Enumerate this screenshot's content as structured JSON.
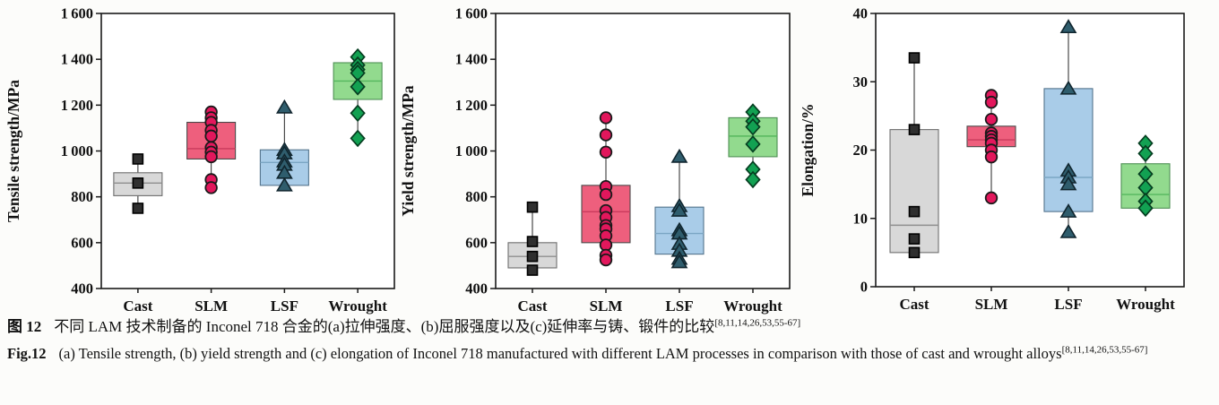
{
  "figure": {
    "caption_zh_label": "图 12",
    "caption_zh": "不同 LAM 技术制备的 Inconel 718 合金的(a)拉伸强度、(b)屈服强度以及(c)延伸率与铸、锻件的比较",
    "caption_en_label": "Fig.12",
    "caption_en": "(a) Tensile strength, (b) yield strength and (c) elongation of Inconel 718 manufactured with different LAM processes in comparison with those of cast and wrought alloys",
    "reference": "[8,11,14,26,53,55-67]"
  },
  "colors": {
    "page_bg": "#fcfcfa",
    "plot_bg": "#ffffff",
    "axis": "#1a1a1a",
    "whisker": "#3a3a3a",
    "boxes": {
      "Cast": {
        "fill": "#d8d8d8",
        "stroke": "#6e6e6e",
        "median": "#8f8f8f"
      },
      "SLM": {
        "fill": "#ee5f7d",
        "stroke": "#4a4a4a",
        "median": "#c93a5d"
      },
      "LSF": {
        "fill": "#a9cce8",
        "stroke": "#54748c",
        "median": "#7ba6c4"
      },
      "Wrought": {
        "fill": "#92da8e",
        "stroke": "#4e8f54",
        "median": "#56b75e"
      }
    },
    "markers": {
      "square": {
        "fill": "#2f2f2f",
        "stroke": "#000000"
      },
      "circle": {
        "fill": "#e2175c",
        "stroke": "#1a1a1a"
      },
      "triangle": {
        "fill": "#2f5d6d",
        "stroke": "#10252e"
      },
      "diamond": {
        "fill": "#12a152",
        "stroke": "#053d20"
      }
    }
  },
  "chart_data": [
    {
      "id": "a",
      "type": "scatter",
      "subtype": "box-scatter",
      "title": "",
      "xlabel": "",
      "ylabel": "Tensile strength/MPa",
      "ylim": [
        400,
        1600
      ],
      "yticks": [
        400,
        600,
        800,
        1000,
        1200,
        1400,
        1600
      ],
      "grid": false,
      "categories": [
        "Cast",
        "SLM",
        "LSF",
        "Wrought"
      ],
      "groups": [
        {
          "label": "Cast",
          "marker": "square",
          "box": {
            "q1": 805,
            "q3": 905,
            "median": 860
          },
          "whisker": [
            750,
            965
          ],
          "points": [
            965,
            860,
            750
          ]
        },
        {
          "label": "SLM",
          "marker": "circle",
          "box": {
            "q1": 965,
            "q3": 1125,
            "median": 1010
          },
          "whisker": [
            840,
            1170
          ],
          "points": [
            1170,
            1145,
            1125,
            1090,
            1065,
            1015,
            995,
            975,
            875,
            840
          ]
        },
        {
          "label": "LSF",
          "marker": "triangle",
          "box": {
            "q1": 850,
            "q3": 1005,
            "median": 950
          },
          "whisker": [
            850,
            1190
          ],
          "points": [
            1190,
            1005,
            990,
            955,
            940,
            905,
            850
          ]
        },
        {
          "label": "Wrought",
          "marker": "diamond",
          "box": {
            "q1": 1225,
            "q3": 1385,
            "median": 1305
          },
          "whisker": [
            1055,
            1410
          ],
          "points": [
            1410,
            1375,
            1355,
            1340,
            1280,
            1165,
            1055
          ]
        }
      ]
    },
    {
      "id": "b",
      "type": "scatter",
      "subtype": "box-scatter",
      "title": "",
      "xlabel": "",
      "ylabel": "Yield strength/MPa",
      "ylim": [
        400,
        1600
      ],
      "yticks": [
        400,
        600,
        800,
        1000,
        1200,
        1400,
        1600
      ],
      "grid": false,
      "categories": [
        "Cast",
        "SLM",
        "LSF",
        "Wrought"
      ],
      "groups": [
        {
          "label": "Cast",
          "marker": "square",
          "box": {
            "q1": 490,
            "q3": 600,
            "median": 540
          },
          "whisker": [
            465,
            755
          ],
          "points": [
            755,
            605,
            540,
            480
          ]
        },
        {
          "label": "SLM",
          "marker": "circle",
          "box": {
            "q1": 600,
            "q3": 850,
            "median": 735
          },
          "whisker": [
            525,
            1145
          ],
          "points": [
            1145,
            1070,
            995,
            845,
            810,
            740,
            710,
            675,
            660,
            630,
            590,
            545,
            525
          ]
        },
        {
          "label": "LSF",
          "marker": "triangle",
          "box": {
            "q1": 550,
            "q3": 755,
            "median": 640
          },
          "whisker": [
            515,
            975
          ],
          "points": [
            975,
            760,
            740,
            655,
            640,
            595,
            565,
            530,
            515
          ]
        },
        {
          "label": "Wrought",
          "marker": "diamond",
          "box": {
            "q1": 975,
            "q3": 1145,
            "median": 1065
          },
          "whisker": [
            875,
            1170
          ],
          "points": [
            1170,
            1130,
            1105,
            1030,
            920,
            875
          ]
        }
      ]
    },
    {
      "id": "c",
      "type": "scatter",
      "subtype": "box-scatter",
      "title": "",
      "xlabel": "",
      "ylabel": "Elongation/%",
      "ylim": [
        0,
        40
      ],
      "yticks": [
        0,
        10,
        20,
        30,
        40
      ],
      "grid": false,
      "categories": [
        "Cast",
        "SLM",
        "LSF",
        "Wrought"
      ],
      "groups": [
        {
          "label": "Cast",
          "marker": "square",
          "box": {
            "q1": 5,
            "q3": 23,
            "median": 9
          },
          "whisker": [
            5,
            33.5
          ],
          "points": [
            33.5,
            23,
            11,
            7,
            5
          ]
        },
        {
          "label": "SLM",
          "marker": "circle",
          "box": {
            "q1": 20.5,
            "q3": 23.5,
            "median": 21.5
          },
          "whisker": [
            13,
            28
          ],
          "points": [
            28,
            27,
            24.5,
            22.5,
            22,
            21.5,
            21,
            20,
            19,
            13
          ]
        },
        {
          "label": "LSF",
          "marker": "triangle",
          "box": {
            "q1": 11,
            "q3": 29,
            "median": 16
          },
          "whisker": [
            8,
            38
          ],
          "points": [
            38,
            29,
            17,
            16,
            15,
            11,
            8
          ]
        },
        {
          "label": "Wrought",
          "marker": "diamond",
          "box": {
            "q1": 11.5,
            "q3": 18,
            "median": 13.5
          },
          "whisker": [
            11.5,
            21
          ],
          "points": [
            21,
            19.5,
            16.5,
            14.5,
            12.5,
            11.5
          ]
        }
      ]
    }
  ]
}
